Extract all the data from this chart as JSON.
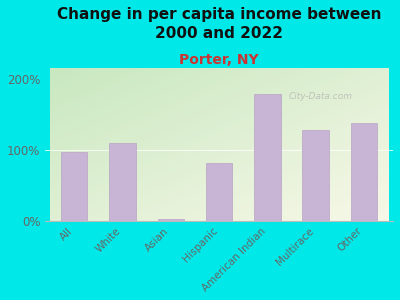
{
  "title": "Change in per capita income between\n2000 and 2022",
  "subtitle": "Porter, NY",
  "categories": [
    "All",
    "White",
    "Asian",
    "Hispanic",
    "American Indian",
    "Multirace",
    "Other"
  ],
  "values": [
    97,
    110,
    2,
    82,
    178,
    128,
    138
  ],
  "bar_color": "#c8b4d4",
  "bar_edge_color": "#b8a4c4",
  "title_fontsize": 11,
  "subtitle_fontsize": 10,
  "subtitle_color": "#cc3333",
  "ylabel_ticks": [
    0,
    100,
    200
  ],
  "ylabel_labels": [
    "0%",
    "100%",
    "200%"
  ],
  "ylim": [
    0,
    215
  ],
  "background_outer": "#00e8e8",
  "watermark": "City-Data.com",
  "title_color": "#111111",
  "tick_color": "#666666",
  "grad_bottom_left": "#c8dfc0",
  "grad_top_right": "#f5f5e0"
}
